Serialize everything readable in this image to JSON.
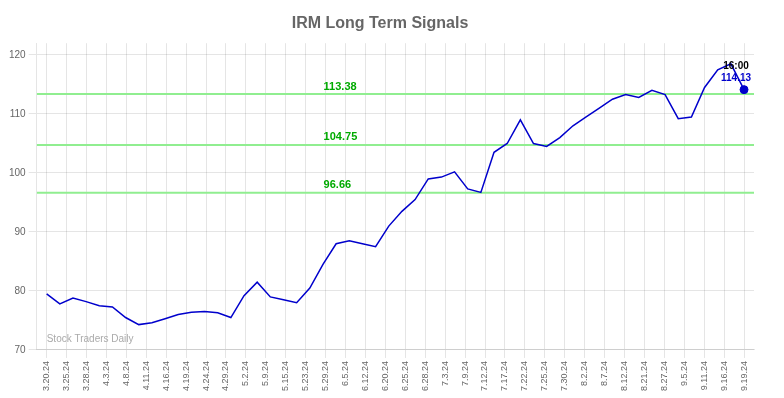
{
  "chart_data": {
    "type": "line",
    "title": "IRM Long Term Signals",
    "x": [
      0,
      0.660377,
      1.320755,
      1.981132,
      2.641509,
      3.301887,
      3.962264,
      4.622642,
      5.283019,
      5.943396,
      6.603774,
      7.264151,
      7.924528,
      8.584906,
      9.245283,
      9.90566,
      10.566038,
      11.226415,
      11.886792,
      12.54717,
      13.207547,
      13.867925,
      14.528302,
      15.188679,
      15.849057,
      16.509434,
      17.169811,
      17.830189,
      18.490566,
      19.150943,
      19.811321,
      20.471698,
      21.132075,
      21.792453,
      22.45283,
      23.113208,
      23.773585,
      24.433962,
      25.09434,
      25.754717,
      26.415094,
      27.075472,
      27.735849,
      28.396226,
      29.056604,
      29.716981,
      30.377358,
      31.037736,
      31.698113,
      32.358491,
      33.018868,
      33.679245,
      34.339623,
      35
    ],
    "values": [
      79.5,
      77.8,
      78.8,
      78.2,
      77.5,
      77.3,
      75.5,
      74.3,
      74.6,
      75.3,
      76.0,
      76.4,
      76.5,
      76.3,
      75.5,
      79.2,
      81.5,
      79.0,
      78.5,
      78.0,
      80.5,
      84.5,
      88.0,
      88.5,
      88.0,
      87.5,
      91.0,
      93.5,
      95.5,
      99.0,
      99.3,
      100.2,
      97.3,
      96.7,
      103.5,
      105.0,
      109.0,
      105.0,
      104.5,
      106.0,
      108.0,
      109.5,
      111.0,
      112.5,
      113.3,
      112.8,
      114.0,
      113.3,
      109.2,
      109.5,
      114.5,
      117.5,
      118.5,
      114.13
    ],
    "color": "#0000cc",
    "xlim": [
      -0.5,
      35.5
    ],
    "xticks": [
      {
        "value": 0,
        "label": "3.20.24"
      },
      {
        "value": 1,
        "label": "3.25.24"
      },
      {
        "value": 2,
        "label": "3.28.24"
      },
      {
        "value": 3,
        "label": "4.3.24"
      },
      {
        "value": 4,
        "label": "4.8.24"
      },
      {
        "value": 5,
        "label": "4.11.24"
      },
      {
        "value": 6,
        "label": "4.16.24"
      },
      {
        "value": 7,
        "label": "4.19.24"
      },
      {
        "value": 8,
        "label": "4.24.24"
      },
      {
        "value": 9,
        "label": "4.29.24"
      },
      {
        "value": 10,
        "label": "5.2.24"
      },
      {
        "value": 11,
        "label": "5.9.24"
      },
      {
        "value": 12,
        "label": "5.15.24"
      },
      {
        "value": 13,
        "label": "5.23.24"
      },
      {
        "value": 14,
        "label": "5.29.24"
      },
      {
        "value": 15,
        "label": "6.5.24"
      },
      {
        "value": 16,
        "label": "6.12.24"
      },
      {
        "value": 17,
        "label": "6.20.24"
      },
      {
        "value": 18,
        "label": "6.25.24"
      },
      {
        "value": 19,
        "label": "6.28.24"
      },
      {
        "value": 20,
        "label": "7.3.24"
      },
      {
        "value": 21,
        "label": "7.9.24"
      },
      {
        "value": 22,
        "label": "7.12.24"
      },
      {
        "value": 23,
        "label": "7.17.24"
      },
      {
        "value": 24,
        "label": "7.22.24"
      },
      {
        "value": 25,
        "label": "7.25.24"
      },
      {
        "value": 26,
        "label": "7.30.24"
      },
      {
        "value": 27,
        "label": "8.2.24"
      },
      {
        "value": 28,
        "label": "8.7.24"
      },
      {
        "value": 29,
        "label": "8.12.24"
      },
      {
        "value": 30,
        "label": "8.21.24"
      },
      {
        "value": 31,
        "label": "8.27.24"
      },
      {
        "value": 32,
        "label": "9.5.24"
      },
      {
        "value": 33,
        "label": "9.11.24"
      },
      {
        "value": 34,
        "label": "9.16.24"
      },
      {
        "value": 35,
        "label": "9.19.24"
      }
    ],
    "ylim": [
      70,
      122
    ],
    "yticks": [
      70,
      80,
      90,
      100,
      110,
      120
    ],
    "grid": true,
    "hlines": {
      "values": [
        96.66,
        104.75,
        113.38
      ],
      "color": "#90EE90",
      "label_color": "#00aa00"
    },
    "last_point": {
      "x": 35,
      "y": 114.13,
      "marker": "circle",
      "color": "#0000cc"
    },
    "annotations": [
      {
        "text": "16:00",
        "x": 35,
        "y": 114.13,
        "color": "#000000"
      },
      {
        "text": "114.13",
        "x": 35,
        "y": 114.13,
        "color": "#0000cc"
      }
    ],
    "watermark": {
      "text": "Stock Traders Daily",
      "color": "#aaaaaa"
    }
  }
}
